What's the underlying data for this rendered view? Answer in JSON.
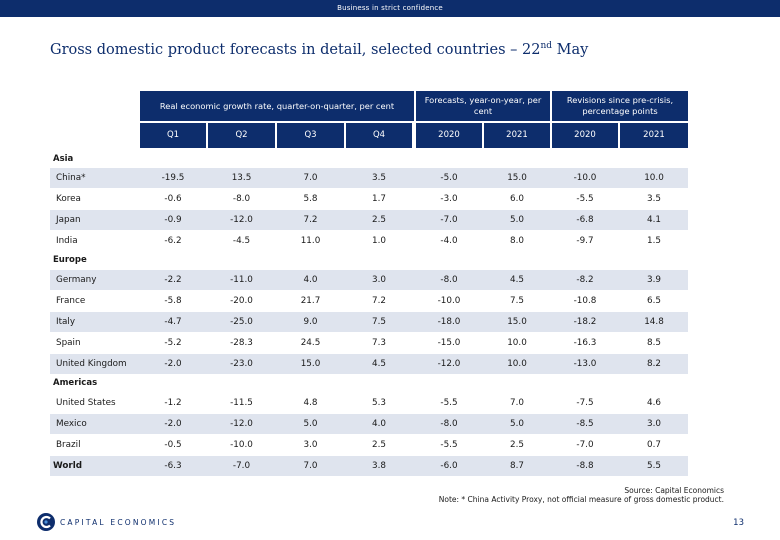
{
  "topbar_text": "Business in strict confidence",
  "title_main": "Gross domestic product forecasts in detail, selected countries – 22",
  "title_sup": "nd",
  "title_tail": " May",
  "headers": {
    "growth": "Real economic growth rate, quarter-on-quarter, per cent",
    "forecasts": "Forecasts, year-on-year, per cent",
    "revisions": "Revisions since pre-crisis, percentage points",
    "cols": [
      "Q1",
      "Q2",
      "Q3",
      "Q4",
      "2020",
      "2021",
      "2020",
      "2021"
    ]
  },
  "regions": [
    "Asia",
    "Europe",
    "Americas"
  ],
  "rows": [
    {
      "label": "China*",
      "values": [
        "-19.5",
        "13.5",
        "7.0",
        "3.5",
        "-5.0",
        "15.0",
        "-10.0",
        "10.0"
      ]
    },
    {
      "label": "Korea",
      "values": [
        "-0.6",
        "-8.0",
        "5.8",
        "1.7",
        "-3.0",
        "6.0",
        "-5.5",
        "3.5"
      ]
    },
    {
      "label": "Japan",
      "values": [
        "-0.9",
        "-12.0",
        "7.2",
        "2.5",
        "-7.0",
        "5.0",
        "-6.8",
        "4.1"
      ]
    },
    {
      "label": "India",
      "values": [
        "-6.2",
        "-4.5",
        "11.0",
        "1.0",
        "-4.0",
        "8.0",
        "-9.7",
        "1.5"
      ]
    },
    {
      "label": "Germany",
      "values": [
        "-2.2",
        "-11.0",
        "4.0",
        "3.0",
        "-8.0",
        "4.5",
        "-8.2",
        "3.9"
      ]
    },
    {
      "label": "France",
      "values": [
        "-5.8",
        "-20.0",
        "21.7",
        "7.2",
        "-10.0",
        "7.5",
        "-10.8",
        "6.5"
      ]
    },
    {
      "label": "Italy",
      "values": [
        "-4.7",
        "-25.0",
        "9.0",
        "7.5",
        "-18.0",
        "15.0",
        "-18.2",
        "14.8"
      ]
    },
    {
      "label": "Spain",
      "values": [
        "-5.2",
        "-28.3",
        "24.5",
        "7.3",
        "-15.0",
        "10.0",
        "-16.3",
        "8.5"
      ]
    },
    {
      "label": "United Kingdom",
      "values": [
        "-2.0",
        "-23.0",
        "15.0",
        "4.5",
        "-12.0",
        "10.0",
        "-13.0",
        "8.2"
      ]
    },
    {
      "label": "United States",
      "values": [
        "-1.2",
        "-11.5",
        "4.8",
        "5.3",
        "-5.5",
        "7.0",
        "-7.5",
        "4.6"
      ]
    },
    {
      "label": "Mexico",
      "values": [
        "-2.0",
        "-12.0",
        "5.0",
        "4.0",
        "-8.0",
        "5.0",
        "-8.5",
        "3.0"
      ]
    },
    {
      "label": "Brazil",
      "values": [
        "-0.5",
        "-10.0",
        "3.0",
        "2.5",
        "-5.5",
        "2.5",
        "-7.0",
        "0.7"
      ]
    },
    {
      "label": "World",
      "values": [
        "-6.3",
        "-7.0",
        "7.0",
        "3.8",
        "-6.0",
        "8.7",
        "-8.8",
        "5.5"
      ]
    }
  ],
  "source_line": "Source: Capital Economics",
  "note_line": "Note: * China Activity Proxy, not official measure of gross domestic product.",
  "logo_text": "CAPITAL ECONOMICS",
  "page_number": "13"
}
